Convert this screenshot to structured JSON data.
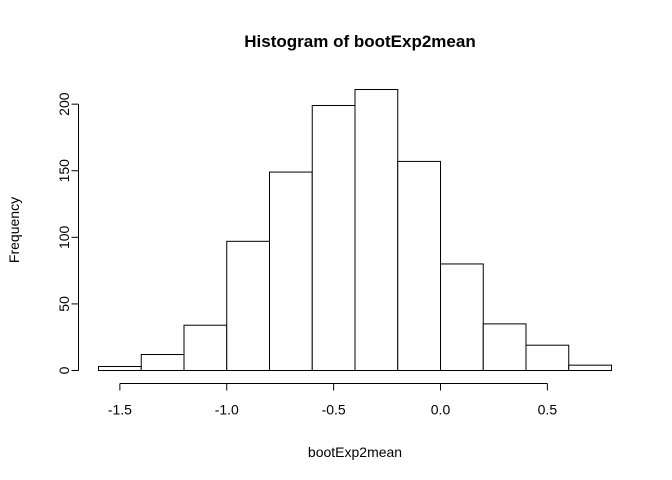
{
  "chart_data": {
    "type": "bar",
    "title": "Histogram of bootExp2mean",
    "xlabel": "bootExp2mean",
    "ylabel": "Frequency",
    "bins": [
      {
        "start": -1.6,
        "end": -1.4,
        "count": 3
      },
      {
        "start": -1.4,
        "end": -1.2,
        "count": 12
      },
      {
        "start": -1.2,
        "end": -1.0,
        "count": 34
      },
      {
        "start": -1.0,
        "end": -0.8,
        "count": 97
      },
      {
        "start": -0.8,
        "end": -0.6,
        "count": 149
      },
      {
        "start": -0.6,
        "end": -0.4,
        "count": 199
      },
      {
        "start": -0.4,
        "end": -0.2,
        "count": 211
      },
      {
        "start": -0.2,
        "end": 0.0,
        "count": 157
      },
      {
        "start": 0.0,
        "end": 0.2,
        "count": 80
      },
      {
        "start": 0.2,
        "end": 0.4,
        "count": 35
      },
      {
        "start": 0.4,
        "end": 0.6,
        "count": 19
      },
      {
        "start": 0.6,
        "end": 0.8,
        "count": 4
      }
    ],
    "x_ticks": [
      -1.5,
      -1.0,
      -0.5,
      0.0,
      0.5
    ],
    "x_tick_labels": [
      "-1.5",
      "-1.0",
      "-0.5",
      "0.0",
      "0.5"
    ],
    "y_ticks": [
      0,
      50,
      100,
      150,
      200
    ],
    "y_tick_labels": [
      "0",
      "50",
      "100",
      "150",
      "200"
    ],
    "xlim": [
      -1.6,
      0.8
    ],
    "ylim": [
      0,
      211
    ],
    "bar_fill": "#ffffff",
    "bar_stroke": "#000000",
    "grid": false,
    "legend": "none"
  }
}
